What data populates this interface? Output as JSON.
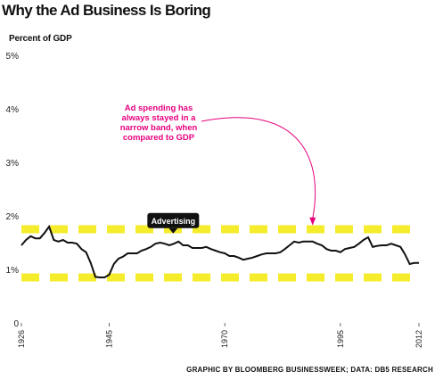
{
  "title": "Why the Ad Business Is Boring",
  "source": "GRAPHIC BY BLOOMBERG BUSINESSWEEK; DATA: DB5 RESEARCH",
  "chart_data": {
    "type": "line",
    "title": "Why the Ad Business Is Boring",
    "ylabel": "Percent of GDP",
    "xlabel": "",
    "xlim": [
      1926,
      2012
    ],
    "ylim": [
      0,
      5
    ],
    "y_ticks": [
      "0",
      "1%",
      "2%",
      "3%",
      "4%",
      "5%"
    ],
    "y_tick_values": [
      0,
      1,
      2,
      3,
      4,
      5
    ],
    "x_ticks": [
      "1926",
      "1945",
      "1970",
      "1995",
      "2012"
    ],
    "x_tick_values": [
      1926,
      1945,
      1970,
      1995,
      2012
    ],
    "grid": false,
    "band": [
      0.85,
      1.75
    ],
    "band_color": "#f5ec2b",
    "line_color": "#111111",
    "callout_label": "Advertising",
    "callout_year": 1960,
    "annotation": {
      "lines": [
        "Ad spending has",
        "always stayed in a",
        "narrow band, when",
        "compared to GDP"
      ],
      "color": "#e6007e",
      "arrow_target_year": 1989,
      "arrow_target_value": 1.82
    },
    "series": [
      {
        "x": [
          1926,
          1927,
          1928,
          1929,
          1930,
          1931,
          1932,
          1933,
          1934,
          1935,
          1936,
          1937,
          1938,
          1939,
          1940,
          1941,
          1942,
          1943,
          1944,
          1945,
          1946,
          1947,
          1948,
          1949,
          1950,
          1951,
          1952,
          1953,
          1954,
          1955,
          1956,
          1957,
          1958,
          1959,
          1960,
          1961,
          1962,
          1963,
          1964,
          1965,
          1966,
          1967,
          1968,
          1969,
          1970,
          1971,
          1972,
          1973,
          1974,
          1975,
          1976,
          1977,
          1978,
          1979,
          1980,
          1981,
          1982,
          1983,
          1984,
          1985,
          1986,
          1987,
          1988,
          1989,
          1990,
          1991,
          1992,
          1993,
          1994,
          1995,
          1996,
          1997,
          1998,
          1999,
          2000,
          2001,
          2002,
          2003,
          2004,
          2005,
          2006,
          2007,
          2008,
          2009,
          2010,
          2011,
          2012
        ],
        "values": [
          1.45,
          1.55,
          1.62,
          1.58,
          1.58,
          1.68,
          1.8,
          1.55,
          1.52,
          1.55,
          1.5,
          1.5,
          1.48,
          1.38,
          1.32,
          1.12,
          0.86,
          0.85,
          0.85,
          0.9,
          1.1,
          1.2,
          1.24,
          1.3,
          1.3,
          1.3,
          1.35,
          1.38,
          1.42,
          1.48,
          1.5,
          1.48,
          1.45,
          1.48,
          1.52,
          1.45,
          1.45,
          1.4,
          1.4,
          1.4,
          1.42,
          1.38,
          1.35,
          1.32,
          1.3,
          1.25,
          1.25,
          1.22,
          1.18,
          1.2,
          1.22,
          1.25,
          1.28,
          1.3,
          1.3,
          1.3,
          1.32,
          1.38,
          1.45,
          1.52,
          1.5,
          1.52,
          1.52,
          1.52,
          1.48,
          1.45,
          1.38,
          1.35,
          1.35,
          1.32,
          1.38,
          1.4,
          1.42,
          1.48,
          1.55,
          1.6,
          1.42,
          1.44,
          1.45,
          1.45,
          1.48,
          1.45,
          1.42,
          1.28,
          1.1,
          1.12,
          1.12
        ]
      }
    ]
  }
}
